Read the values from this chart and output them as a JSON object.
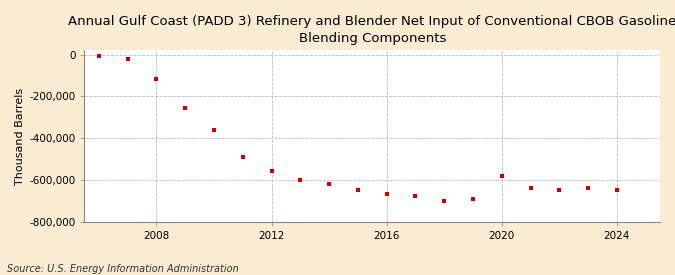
{
  "title": "Annual Gulf Coast (PADD 3) Refinery and Blender Net Input of Conventional CBOB Gasoline\nBlending Components",
  "ylabel": "Thousand Barrels",
  "source": "Source: U.S. Energy Information Administration",
  "background_color": "#faecd2",
  "plot_background_color": "#ffffff",
  "marker_color": "#cc0000",
  "years": [
    2006,
    2007,
    2008,
    2009,
    2010,
    2011,
    2012,
    2013,
    2014,
    2015,
    2016,
    2017,
    2018,
    2019,
    2020,
    2021,
    2022,
    2023,
    2024
  ],
  "values": [
    -8000,
    -20000,
    -115000,
    -255000,
    -362000,
    -492000,
    -558000,
    -598000,
    -618000,
    -648000,
    -668000,
    -678000,
    -700000,
    -692000,
    -580000,
    -638000,
    -648000,
    -638000,
    -648000
  ],
  "ylim": [
    -800000,
    20000
  ],
  "yticks": [
    0,
    -200000,
    -400000,
    -600000,
    -800000
  ],
  "xlim": [
    2005.5,
    2025.5
  ],
  "xticks": [
    2008,
    2012,
    2016,
    2020,
    2024
  ],
  "grid_color": "#bbbbbb",
  "title_fontsize": 9.5,
  "axis_fontsize": 8,
  "tick_fontsize": 7.5,
  "source_fontsize": 7
}
